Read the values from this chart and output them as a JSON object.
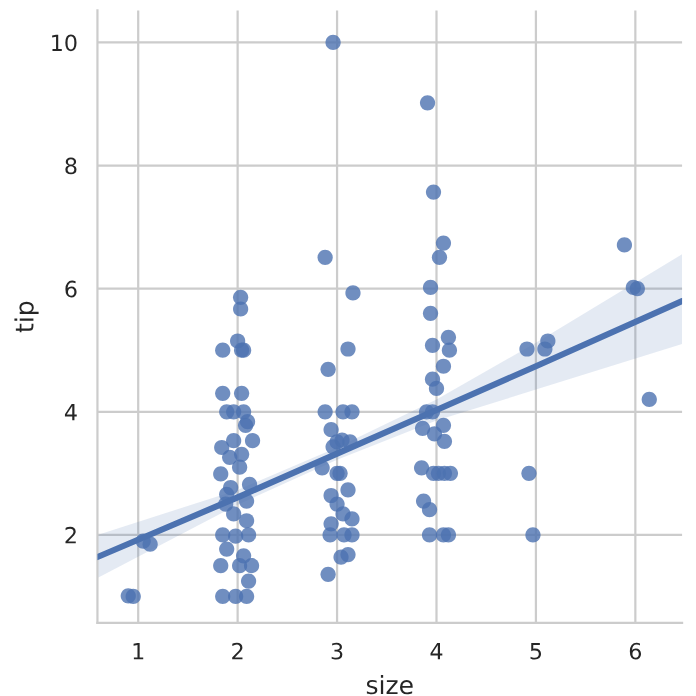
{
  "chart_data": {
    "type": "scatter",
    "xlabel": "size",
    "ylabel": "tip",
    "xlim": [
      0.59,
      6.47
    ],
    "ylim": [
      0.57,
      10.52
    ],
    "xticks": [
      1,
      2,
      3,
      4,
      5,
      6
    ],
    "yticks": [
      2,
      4,
      6,
      8,
      10
    ],
    "grid": true,
    "series": [
      {
        "color": "#4c72b0",
        "marker": "circle",
        "x": [
          2.96,
          0.9,
          0.95,
          1.12,
          1.05,
          2.03,
          2.03,
          2.0,
          1.85,
          2.04,
          2.06,
          1.85,
          2.04,
          1.96,
          1.89,
          2.06,
          2.08,
          1.84,
          1.96,
          2.15,
          2.04,
          1.83,
          2.02,
          2.12,
          1.89,
          2.09,
          1.96,
          1.85,
          1.98,
          2.11,
          1.89,
          2.06,
          1.83,
          2.02,
          2.14,
          2.11,
          1.85,
          1.98,
          2.09,
          1.93,
          2.09,
          1.92,
          2.1,
          1.88,
          2.88,
          3.16,
          3.11,
          2.91,
          2.88,
          3.06,
          3.15,
          2.94,
          3.0,
          3.05,
          2.96,
          3.13,
          2.85,
          3.0,
          3.03,
          3.11,
          2.94,
          3.0,
          3.06,
          3.15,
          2.94,
          2.93,
          3.07,
          3.15,
          3.04,
          3.11,
          2.91,
          3.91,
          3.97,
          4.07,
          4.03,
          3.94,
          3.94,
          3.96,
          4.12,
          4.13,
          4.07,
          3.96,
          4.0,
          3.9,
          3.96,
          3.86,
          4.07,
          3.98,
          4.08,
          3.85,
          3.97,
          4.02,
          4.08,
          4.14,
          3.87,
          3.93,
          3.93,
          4.07,
          4.12,
          4.91,
          5.09,
          5.12,
          4.93,
          4.97,
          5.89,
          5.98,
          6.02,
          6.14
        ],
        "values": [
          10.0,
          1.01,
          1.0,
          1.85,
          1.9,
          5.86,
          5.67,
          5.15,
          5.0,
          5.0,
          5.0,
          4.3,
          4.3,
          4.0,
          4.0,
          4.0,
          3.78,
          3.42,
          3.53,
          3.53,
          3.31,
          2.99,
          3.1,
          2.82,
          2.66,
          2.55,
          2.34,
          2.0,
          1.98,
          2.0,
          1.77,
          1.66,
          1.5,
          1.5,
          1.5,
          1.25,
          1.0,
          1.0,
          1.0,
          2.77,
          2.23,
          3.26,
          3.84,
          2.5,
          6.51,
          5.93,
          5.02,
          4.69,
          4.0,
          4.0,
          4.0,
          3.71,
          3.51,
          3.54,
          3.43,
          3.51,
          3.09,
          3.0,
          3.0,
          2.73,
          2.64,
          2.5,
          2.34,
          2.26,
          2.18,
          2.0,
          2.0,
          2.0,
          1.64,
          1.68,
          1.36,
          9.02,
          7.57,
          6.74,
          6.51,
          6.02,
          5.6,
          5.08,
          5.21,
          5.0,
          4.74,
          4.53,
          4.38,
          4.0,
          4.0,
          3.73,
          3.78,
          3.64,
          3.52,
          3.09,
          3.0,
          3.0,
          3.0,
          3.0,
          2.55,
          2.41,
          2.0,
          2.0,
          2.0,
          5.02,
          5.02,
          5.15,
          3.0,
          2.0,
          6.71,
          6.02,
          6.0,
          4.2
        ]
      },
      {
        "type": "line",
        "color": "#4c72b0",
        "x": [
          0.59,
          2,
          3,
          4,
          5,
          6.47
        ],
        "values": [
          1.64,
          2.61,
          3.32,
          4.03,
          4.74,
          5.8
        ],
        "lower": [
          1.3,
          2.49,
          3.22,
          3.86,
          4.36,
          5.1
        ],
        "upper": [
          2.0,
          2.73,
          3.42,
          4.2,
          5.12,
          6.56
        ]
      }
    ]
  }
}
